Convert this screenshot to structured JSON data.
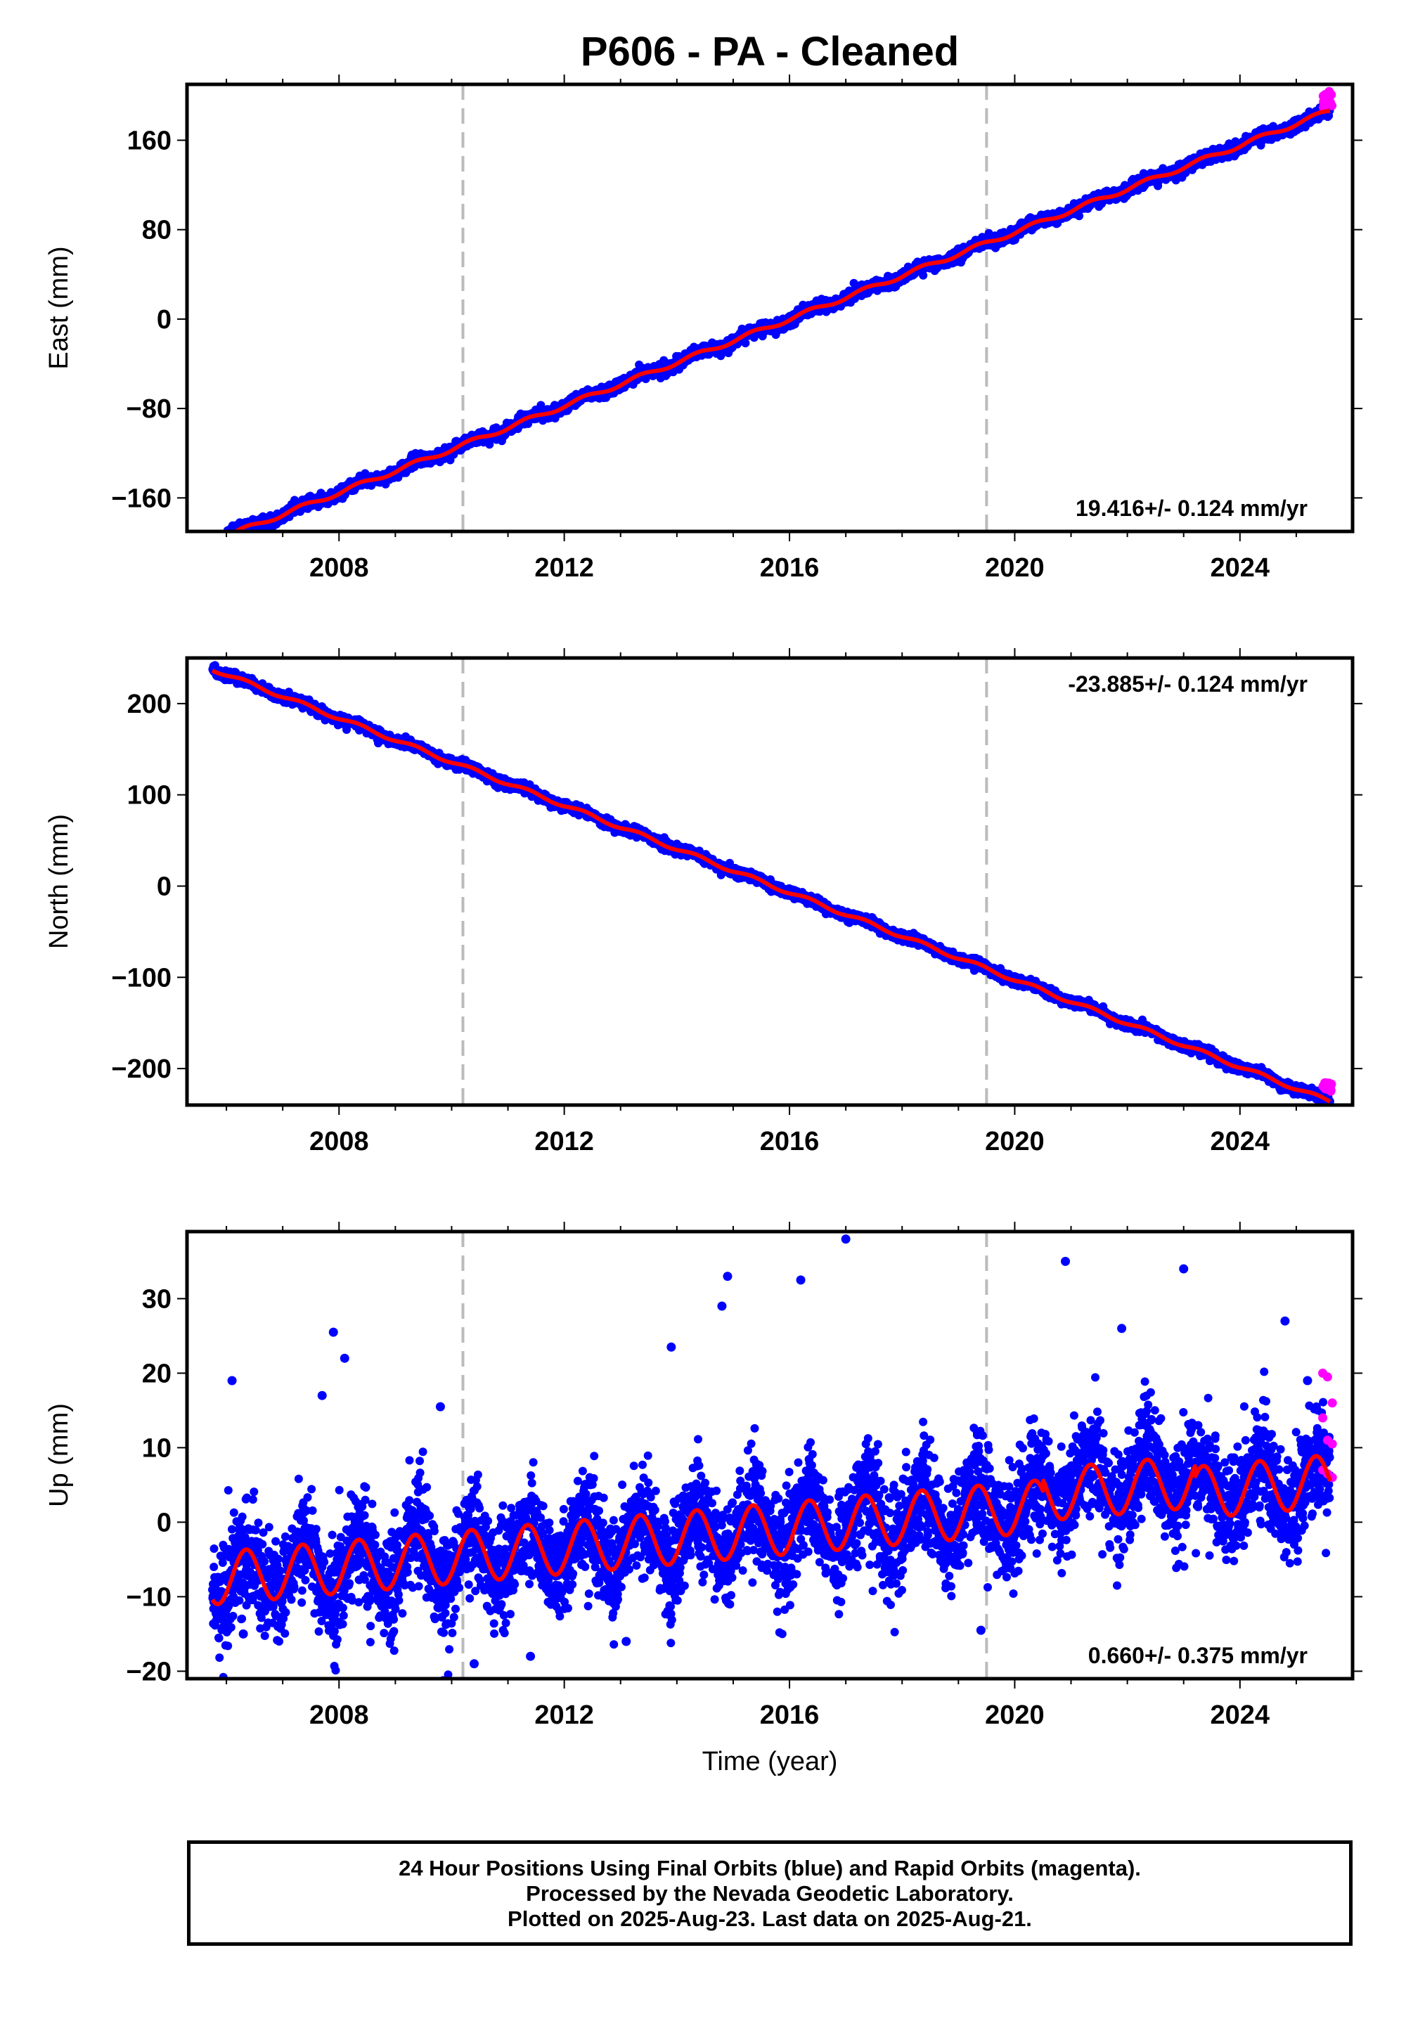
{
  "title": "P606  - PA - Cleaned",
  "footer": {
    "line1": "24 Hour Positions Using Final Orbits (blue) and Rapid Orbits (magenta).",
    "line2": "Processed by the Nevada Geodetic Laboratory.",
    "line3": "Plotted on 2025-Aug-23. Last data on 2025-Aug-21."
  },
  "colors": {
    "final_orbits": "#0000ff",
    "rapid_orbits": "#ff00ff",
    "model_fit": "#ff0000",
    "equipment_change_lines": "#bbbbbb"
  },
  "chart_data": [
    {
      "type": "scatter",
      "name": "east",
      "ylabel": "East (mm)",
      "xlabel": "",
      "xlim": [
        2005.3,
        2026.0
      ],
      "ylim": [
        -190,
        210
      ],
      "yticks": [
        -160,
        -80,
        0,
        80,
        160
      ],
      "xticks": [
        2008,
        2012,
        2016,
        2020,
        2024
      ],
      "rate_label": "19.416+/- 0.124 mm/yr",
      "rate_position": "bottom-right",
      "trend": {
        "start": 2005.75,
        "end": 2025.6,
        "y_at_2016": 0,
        "slope": 19.416,
        "seasonal_amp": 2.0,
        "noise": 2.5
      },
      "rapid_points": {
        "start": 2025.47,
        "end": 2025.64,
        "y_range": [
          188,
          204
        ]
      },
      "equipment_change_years": [
        2010.2,
        2019.5
      ]
    },
    {
      "type": "scatter",
      "name": "north",
      "ylabel": "North (mm)",
      "xlabel": "",
      "xlim": [
        2005.3,
        2026.0
      ],
      "ylim": [
        -240,
        250
      ],
      "yticks": [
        -200,
        -100,
        0,
        100,
        200
      ],
      "xticks": [
        2008,
        2012,
        2016,
        2020,
        2024
      ],
      "rate_label": "-23.885+/- 0.124 mm/yr",
      "rate_position": "top-right",
      "trend": {
        "start": 2005.75,
        "end": 2025.6,
        "y_at_2016": -7,
        "slope": -23.885,
        "seasonal_amp": 2.0,
        "noise": 2.5
      },
      "rapid_points": {
        "start": 2025.47,
        "end": 2025.64,
        "y_range": [
          -226,
          -215
        ]
      },
      "equipment_change_years": [
        2010.2,
        2019.5
      ]
    },
    {
      "type": "scatter",
      "name": "up",
      "ylabel": "Up (mm)",
      "xlabel": "Time (year)",
      "xlim": [
        2005.3,
        2026.0
      ],
      "ylim": [
        -21,
        39
      ],
      "yticks": [
        -20,
        -10,
        0,
        10,
        20,
        30
      ],
      "xticks": [
        2008,
        2012,
        2016,
        2020,
        2024
      ],
      "rate_label": "0.660+/- 0.375 mm/yr",
      "rate_position": "bottom-right",
      "trend": {
        "start": 2005.75,
        "end": 2025.6,
        "y_at_2016": -0.8,
        "slope": 0.66,
        "seasonal_amp": 3.5,
        "noise": 3.6
      },
      "outliers": [
        [
          2006.1,
          19
        ],
        [
          2007.7,
          17
        ],
        [
          2007.9,
          25.5
        ],
        [
          2008.1,
          22
        ],
        [
          2009.8,
          15.5
        ],
        [
          2010.4,
          -19
        ],
        [
          2011.4,
          -18
        ],
        [
          2013.9,
          23.5
        ],
        [
          2014.8,
          29
        ],
        [
          2014.9,
          33
        ],
        [
          2016.2,
          32.5
        ],
        [
          2017.0,
          38
        ],
        [
          2020.9,
          35
        ],
        [
          2021.9,
          26
        ],
        [
          2023.0,
          34
        ],
        [
          2024.8,
          27
        ],
        [
          2025.2,
          19
        ],
        [
          2019.4,
          -14.5
        ],
        [
          2013.1,
          -16
        ],
        [
          2006.3,
          -15
        ]
      ],
      "rapid_points": {
        "start": 2025.47,
        "end": 2025.64,
        "y_values": [
          20,
          19.5,
          16,
          14,
          11,
          10.5,
          7,
          6.5,
          6
        ]
      },
      "equipment_change_years": [
        2010.2,
        2019.5
      ]
    }
  ]
}
